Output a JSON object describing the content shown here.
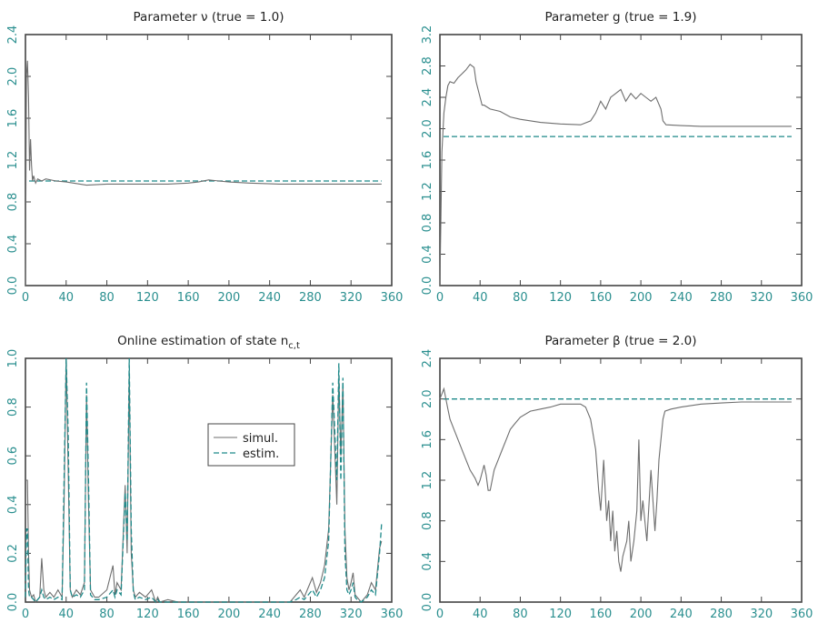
{
  "chart_data": [
    {
      "id": "nu",
      "type": "line",
      "title": "Parameter ν (true = 1.0)",
      "xlim": [
        0,
        360
      ],
      "ylim": [
        0,
        2.4
      ],
      "xticks": [
        0,
        40,
        80,
        120,
        160,
        200,
        240,
        280,
        320,
        360
      ],
      "yticks": [
        0.0,
        0.4,
        0.8,
        1.2,
        1.6,
        2.0,
        2.4
      ],
      "ytick_labels": [
        "0.0",
        "0.4",
        "0.8",
        "1.2",
        "1.6",
        "2.0",
        "2.4"
      ],
      "true_value": 1.0,
      "series": [
        {
          "role": "estimate",
          "x": [
            0,
            1,
            2,
            3,
            4,
            5,
            6,
            7,
            8,
            10,
            12,
            16,
            20,
            30,
            40,
            60,
            80,
            100,
            120,
            140,
            160,
            170,
            180,
            190,
            200,
            220,
            250,
            300,
            350
          ],
          "y": [
            0.0,
            2.0,
            2.15,
            1.8,
            1.1,
            1.4,
            1.15,
            1.0,
            1.05,
            0.98,
            1.02,
            1.0,
            1.02,
            1.0,
            0.99,
            0.96,
            0.97,
            0.97,
            0.97,
            0.97,
            0.98,
            0.99,
            1.01,
            1.0,
            0.99,
            0.98,
            0.97,
            0.97,
            0.97
          ]
        }
      ]
    },
    {
      "id": "g",
      "type": "line",
      "title": "Parameter g (true = 1.9)",
      "xlim": [
        0,
        360
      ],
      "ylim": [
        0,
        3.2
      ],
      "xticks": [
        0,
        40,
        80,
        120,
        160,
        200,
        240,
        280,
        320,
        360
      ],
      "yticks": [
        0.0,
        0.4,
        0.8,
        1.2,
        1.6,
        2.0,
        2.4,
        2.8,
        3.2
      ],
      "ytick_labels": [
        "0.0",
        "0.4",
        "0.8",
        "1.2",
        "1.6",
        "2.0",
        "2.4",
        "2.8",
        "3.2"
      ],
      "true_value": 1.9,
      "series": [
        {
          "role": "estimate",
          "x": [
            0,
            2,
            4,
            6,
            8,
            10,
            14,
            18,
            22,
            26,
            30,
            34,
            36,
            38,
            40,
            42,
            44,
            50,
            60,
            70,
            80,
            100,
            120,
            140,
            150,
            155,
            160,
            165,
            170,
            175,
            180,
            185,
            190,
            195,
            200,
            205,
            210,
            215,
            220,
            222,
            225,
            240,
            260,
            300,
            350
          ],
          "y": [
            0.0,
            1.7,
            2.2,
            2.4,
            2.55,
            2.6,
            2.58,
            2.65,
            2.7,
            2.75,
            2.82,
            2.78,
            2.6,
            2.5,
            2.4,
            2.3,
            2.3,
            2.25,
            2.22,
            2.15,
            2.12,
            2.08,
            2.06,
            2.05,
            2.1,
            2.2,
            2.35,
            2.25,
            2.4,
            2.45,
            2.5,
            2.35,
            2.45,
            2.38,
            2.45,
            2.4,
            2.35,
            2.4,
            2.25,
            2.1,
            2.05,
            2.04,
            2.03,
            2.03,
            2.03
          ]
        }
      ]
    },
    {
      "id": "state",
      "type": "line",
      "title": "Online estimation of state n",
      "title_subscript": "c,t",
      "xlim": [
        0,
        360
      ],
      "ylim": [
        0,
        1.0
      ],
      "xticks": [
        0,
        40,
        80,
        120,
        160,
        200,
        240,
        280,
        320,
        360
      ],
      "yticks": [
        0.0,
        0.2,
        0.4,
        0.6,
        0.8,
        1.0
      ],
      "ytick_labels": [
        "0.0",
        "0.2",
        "0.4",
        "0.6",
        "0.8",
        "1.0"
      ],
      "legend": {
        "position": "center-right",
        "entries": [
          "simul.",
          "estim."
        ]
      },
      "series": [
        {
          "name": "simul.",
          "x": [
            0,
            1,
            2,
            3,
            4,
            6,
            8,
            10,
            14,
            16,
            18,
            20,
            24,
            28,
            32,
            36,
            38,
            40,
            42,
            44,
            46,
            50,
            54,
            58,
            60,
            62,
            64,
            68,
            72,
            80,
            86,
            88,
            90,
            94,
            98,
            100,
            102,
            104,
            106,
            108,
            112,
            118,
            124,
            128,
            130,
            132,
            140,
            150,
            160,
            180,
            200,
            240,
            260,
            266,
            270,
            274,
            278,
            282,
            286,
            290,
            294,
            298,
            302,
            306,
            308,
            310,
            312,
            314,
            316,
            318,
            320,
            322,
            324,
            326,
            330,
            336,
            340,
            344,
            348,
            350
          ],
          "y": [
            0.5,
            0.5,
            0.5,
            0.2,
            0.05,
            0.02,
            0.03,
            0.0,
            0.02,
            0.18,
            0.05,
            0.02,
            0.04,
            0.02,
            0.05,
            0.02,
            0.4,
            1.0,
            0.55,
            0.05,
            0.02,
            0.05,
            0.03,
            0.08,
            0.85,
            0.4,
            0.05,
            0.02,
            0.02,
            0.05,
            0.15,
            0.03,
            0.08,
            0.05,
            0.48,
            0.2,
            0.95,
            0.2,
            0.05,
            0.02,
            0.04,
            0.02,
            0.05,
            0.0,
            0.02,
            0.0,
            0.01,
            0.0,
            0.0,
            0.0,
            0.0,
            0.0,
            0.0,
            0.03,
            0.05,
            0.02,
            0.06,
            0.1,
            0.04,
            0.08,
            0.15,
            0.3,
            0.85,
            0.4,
            0.93,
            0.6,
            0.9,
            0.3,
            0.1,
            0.05,
            0.08,
            0.12,
            0.03,
            0.02,
            0.0,
            0.03,
            0.08,
            0.05,
            0.22,
            0.25
          ]
        },
        {
          "name": "estim.",
          "x": [
            0,
            1,
            2,
            3,
            4,
            6,
            8,
            10,
            14,
            16,
            18,
            20,
            24,
            28,
            32,
            36,
            38,
            40,
            42,
            44,
            46,
            50,
            54,
            58,
            60,
            62,
            64,
            68,
            72,
            80,
            86,
            88,
            90,
            94,
            98,
            100,
            102,
            104,
            106,
            108,
            112,
            118,
            124,
            128,
            130,
            132,
            140,
            150,
            160,
            180,
            200,
            240,
            260,
            266,
            270,
            274,
            278,
            282,
            286,
            290,
            294,
            298,
            302,
            306,
            308,
            310,
            312,
            314,
            316,
            318,
            320,
            322,
            324,
            326,
            330,
            336,
            340,
            344,
            348,
            350
          ],
          "y": [
            0.02,
            0.3,
            0.3,
            0.05,
            0.02,
            0.02,
            0.01,
            0.0,
            0.02,
            0.05,
            0.02,
            0.01,
            0.02,
            0.01,
            0.02,
            0.01,
            0.5,
            1.0,
            0.7,
            0.05,
            0.02,
            0.03,
            0.02,
            0.05,
            0.9,
            0.5,
            0.03,
            0.01,
            0.01,
            0.02,
            0.05,
            0.02,
            0.05,
            0.03,
            0.45,
            0.25,
            1.0,
            0.3,
            0.04,
            0.01,
            0.02,
            0.01,
            0.02,
            0.0,
            0.01,
            0.0,
            0.0,
            0.0,
            0.0,
            0.0,
            0.0,
            0.0,
            0.0,
            0.01,
            0.02,
            0.01,
            0.03,
            0.05,
            0.02,
            0.05,
            0.1,
            0.25,
            0.9,
            0.5,
            0.98,
            0.5,
            0.92,
            0.2,
            0.05,
            0.03,
            0.05,
            0.08,
            0.02,
            0.01,
            0.0,
            0.02,
            0.05,
            0.03,
            0.2,
            0.32
          ]
        }
      ]
    },
    {
      "id": "beta",
      "type": "line",
      "title": "Parameter β (true = 2.0)",
      "xlim": [
        0,
        360
      ],
      "ylim": [
        0,
        2.4
      ],
      "xticks": [
        0,
        40,
        80,
        120,
        160,
        200,
        240,
        280,
        320,
        360
      ],
      "yticks": [
        0.0,
        0.4,
        0.8,
        1.2,
        1.6,
        2.0,
        2.4
      ],
      "ytick_labels": [
        "0.0",
        "0.4",
        "0.8",
        "1.2",
        "1.6",
        "2.0",
        "2.4"
      ],
      "true_value": 2.0,
      "series": [
        {
          "role": "estimate",
          "x": [
            0,
            2,
            4,
            6,
            8,
            10,
            14,
            18,
            24,
            30,
            35,
            38,
            40,
            44,
            46,
            48,
            50,
            54,
            58,
            62,
            66,
            70,
            74,
            80,
            90,
            100,
            110,
            120,
            130,
            140,
            145,
            150,
            155,
            158,
            160,
            163,
            166,
            168,
            170,
            172,
            174,
            176,
            178,
            180,
            182,
            186,
            188,
            190,
            193,
            196,
            198,
            200,
            202,
            206,
            210,
            214,
            216,
            218,
            220,
            222,
            224,
            230,
            240,
            260,
            280,
            300,
            350
          ],
          "y": [
            2.0,
            2.05,
            2.1,
            2.0,
            1.9,
            1.8,
            1.7,
            1.6,
            1.45,
            1.3,
            1.22,
            1.15,
            1.2,
            1.35,
            1.25,
            1.1,
            1.1,
            1.3,
            1.4,
            1.5,
            1.6,
            1.7,
            1.75,
            1.82,
            1.88,
            1.9,
            1.92,
            1.95,
            1.95,
            1.95,
            1.92,
            1.8,
            1.5,
            1.1,
            0.9,
            1.4,
            0.8,
            1.0,
            0.6,
            0.9,
            0.5,
            0.7,
            0.4,
            0.3,
            0.45,
            0.6,
            0.8,
            0.4,
            0.6,
            0.9,
            1.6,
            0.8,
            1.0,
            0.6,
            1.3,
            0.7,
            1.0,
            1.4,
            1.6,
            1.8,
            1.88,
            1.9,
            1.92,
            1.95,
            1.96,
            1.97,
            1.97
          ]
        }
      ]
    }
  ]
}
